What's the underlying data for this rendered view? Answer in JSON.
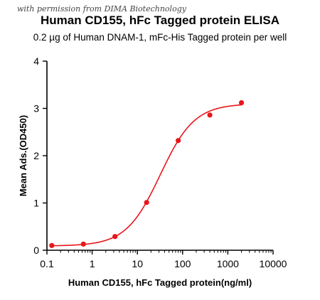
{
  "watermark": "with permission from DIMA Biotechnology",
  "chart_data": {
    "type": "scatter",
    "title": "Human CD155, hFc Tagged protein ELISA",
    "subtitle": "0.2 µg of Human DNAM-1, mFc-His Tagged protein per well",
    "xlabel": "Human CD155, hFc Tagged protein(ng/ml)",
    "ylabel": "Mean Ads.(OD450)",
    "xscale": "log",
    "xlim": [
      0.1,
      10000
    ],
    "ylim": [
      0,
      4
    ],
    "xticks": [
      {
        "value": 0.1,
        "label": "0.1"
      },
      {
        "value": 1,
        "label": "1"
      },
      {
        "value": 10,
        "label": "10"
      },
      {
        "value": 100,
        "label": "100"
      },
      {
        "value": 1000,
        "label": "1000"
      },
      {
        "value": 10000,
        "label": "10000"
      }
    ],
    "yticks": [
      {
        "value": 0,
        "label": "0"
      },
      {
        "value": 1,
        "label": "1"
      },
      {
        "value": 2,
        "label": "2"
      },
      {
        "value": 3,
        "label": "3"
      },
      {
        "value": 4,
        "label": "4"
      }
    ],
    "grid": false,
    "color": "#e8161b",
    "points": [
      {
        "x": 0.128,
        "y": 0.1
      },
      {
        "x": 0.64,
        "y": 0.13
      },
      {
        "x": 3.2,
        "y": 0.29
      },
      {
        "x": 16,
        "y": 1.01
      },
      {
        "x": 80,
        "y": 2.32
      },
      {
        "x": 400,
        "y": 2.86
      },
      {
        "x": 2000,
        "y": 3.12
      }
    ],
    "fit": {
      "model": "4PL",
      "bottom": 0.09,
      "top": 3.1,
      "ec50": 32,
      "hill": 1.15
    }
  }
}
